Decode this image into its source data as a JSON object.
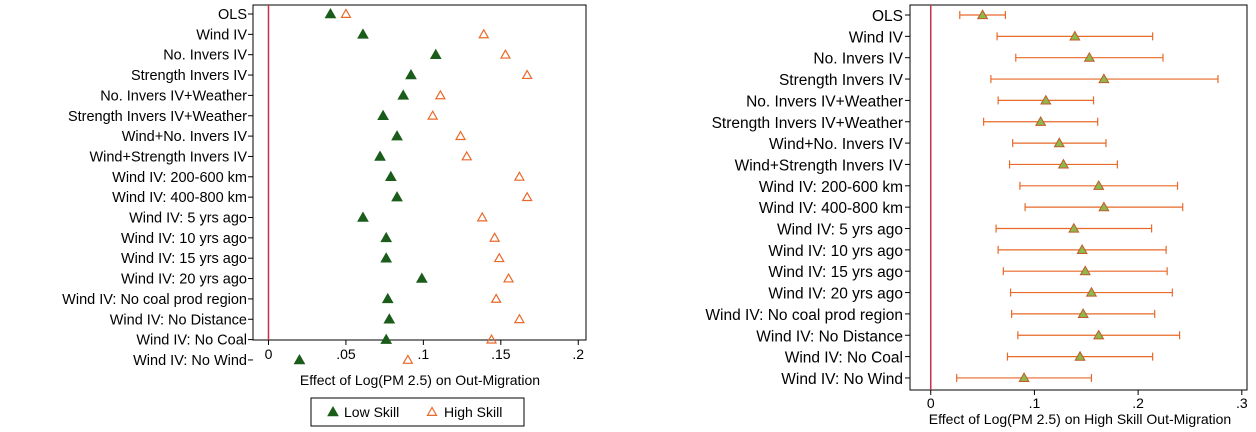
{
  "chart_data": [
    {
      "type": "scatter",
      "orientation": "horizontal",
      "xlabel": "Effect of Log(PM 2.5) on Out-Migration",
      "xlim": [
        -0.01,
        0.205
      ],
      "xticks": [
        {
          "value": 0,
          "label": "0"
        },
        {
          "value": 0.05,
          "label": ".05"
        },
        {
          "value": 0.1,
          "label": ".1"
        },
        {
          "value": 0.15,
          "label": ".15"
        },
        {
          "value": 0.2,
          "label": ".2"
        }
      ],
      "reference_line": 0,
      "grid": false,
      "legend_placement": "bottom",
      "categories": [
        "OLS",
        "Wind IV",
        "No. Invers IV",
        "Strength Invers IV",
        "No. Invers IV+Weather",
        "Strength Invers IV+Weather",
        "Wind+No. Invers IV",
        "Wind+Strength Invers IV",
        "Wind IV: 200-600 km",
        "Wind IV: 400-800 km",
        "Wind IV: 5 yrs ago",
        "Wind IV: 10 yrs ago",
        "Wind IV: 15 yrs ago",
        "Wind IV: 20 yrs ago",
        "Wind IV: No coal prod region",
        "Wind IV: No Distance",
        "Wind IV: No Coal",
        "Wind IV: No Wind"
      ],
      "series": [
        {
          "name": "Low Skill",
          "marker": "filled-triangle",
          "color": "#1a5c1a",
          "values": [
            0.04,
            0.061,
            0.108,
            0.092,
            0.087,
            0.074,
            0.083,
            0.072,
            0.079,
            0.083,
            0.061,
            0.076,
            0.076,
            0.099,
            0.077,
            0.078,
            0.076,
            0.02
          ]
        },
        {
          "name": "High Skill",
          "marker": "hollow-triangle",
          "color": "#e8692a",
          "values": [
            0.05,
            0.139,
            0.153,
            0.167,
            0.111,
            0.106,
            0.124,
            0.128,
            0.162,
            0.167,
            0.138,
            0.146,
            0.149,
            0.155,
            0.147,
            0.162,
            0.144,
            0.09
          ]
        }
      ]
    },
    {
      "type": "scatter",
      "orientation": "horizontal",
      "with_error_bars": true,
      "xlabel": "Effect of Log(PM 2.5) on High Skill Out-Migration",
      "xlim": [
        -0.02,
        0.305
      ],
      "xticks": [
        {
          "value": 0,
          "label": "0"
        },
        {
          "value": 0.1,
          "label": ".1"
        },
        {
          "value": 0.2,
          "label": ".2"
        },
        {
          "value": 0.3,
          "label": ".3"
        }
      ],
      "reference_line": 0,
      "grid": false,
      "categories": [
        "OLS",
        "Wind IV",
        "No. Invers IV",
        "Strength Invers IV",
        "No. Invers IV+Weather",
        "Strength Invers IV+Weather",
        "Wind+No. Invers IV",
        "Wind+Strength Invers IV",
        "Wind IV: 200-600 km",
        "Wind IV: 400-800 km",
        "Wind IV: 5 yrs ago",
        "Wind IV: 10 yrs ago",
        "Wind IV: 15 yrs ago",
        "Wind IV: 20 yrs ago",
        "Wind IV: No coal prod region",
        "Wind IV: No Distance",
        "Wind IV: No Coal",
        "Wind IV: No Wind"
      ],
      "series": [
        {
          "point_color": "#8db84a",
          "point_edge": "#c05a2a",
          "bar_color": "#e8692a",
          "points": [
            {
              "value": 0.05,
              "lo": 0.028,
              "hi": 0.072
            },
            {
              "value": 0.139,
              "lo": 0.064,
              "hi": 0.214
            },
            {
              "value": 0.153,
              "lo": 0.082,
              "hi": 0.224
            },
            {
              "value": 0.167,
              "lo": 0.058,
              "hi": 0.277
            },
            {
              "value": 0.111,
              "lo": 0.065,
              "hi": 0.157
            },
            {
              "value": 0.106,
              "lo": 0.051,
              "hi": 0.161
            },
            {
              "value": 0.124,
              "lo": 0.079,
              "hi": 0.169
            },
            {
              "value": 0.128,
              "lo": 0.076,
              "hi": 0.18
            },
            {
              "value": 0.162,
              "lo": 0.086,
              "hi": 0.238
            },
            {
              "value": 0.167,
              "lo": 0.091,
              "hi": 0.243
            },
            {
              "value": 0.138,
              "lo": 0.063,
              "hi": 0.213
            },
            {
              "value": 0.146,
              "lo": 0.065,
              "hi": 0.227
            },
            {
              "value": 0.149,
              "lo": 0.07,
              "hi": 0.228
            },
            {
              "value": 0.155,
              "lo": 0.077,
              "hi": 0.233
            },
            {
              "value": 0.147,
              "lo": 0.078,
              "hi": 0.216
            },
            {
              "value": 0.162,
              "lo": 0.084,
              "hi": 0.24
            },
            {
              "value": 0.144,
              "lo": 0.074,
              "hi": 0.214
            },
            {
              "value": 0.09,
              "lo": 0.025,
              "hi": 0.155
            }
          ]
        }
      ]
    }
  ],
  "colors": {
    "reference_line": "#c8304a",
    "frame": "#000000"
  }
}
